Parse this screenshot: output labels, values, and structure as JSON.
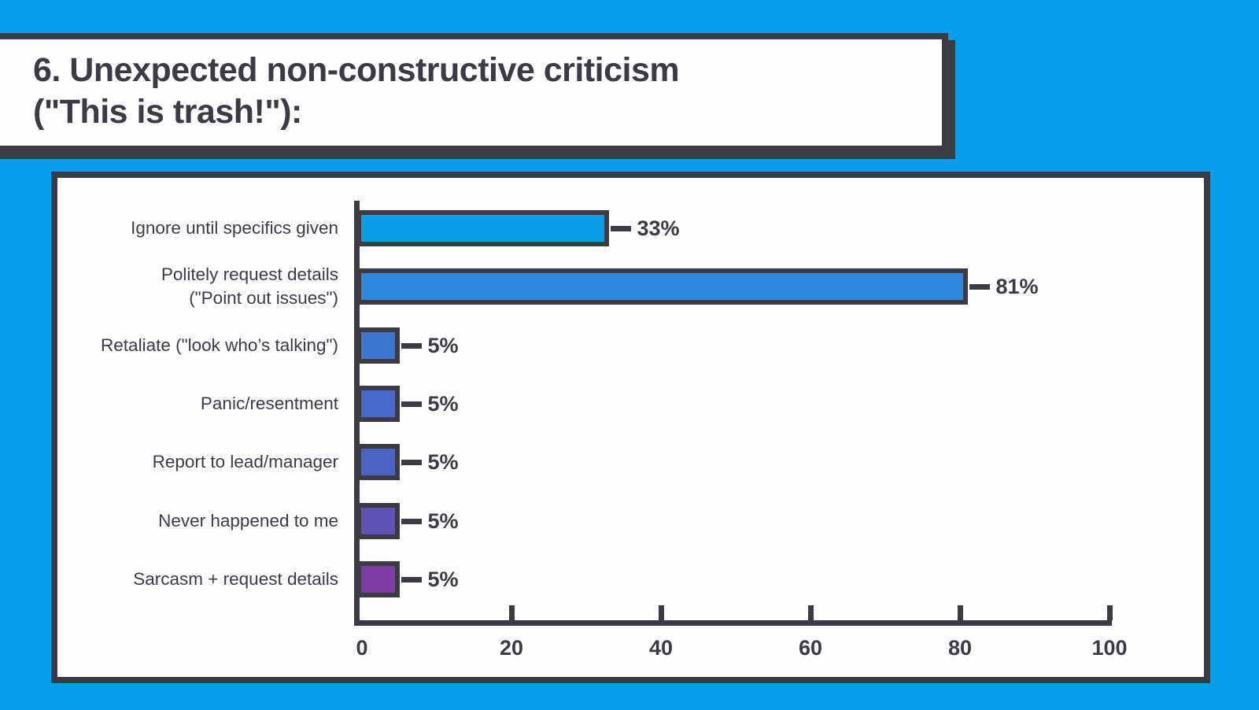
{
  "theme": {
    "background": "#059DEA",
    "ink": "#3B3B45",
    "card_background": "#FEFEFE"
  },
  "title": {
    "text": "6. Unexpected non-constructive criticism\n(\"This is trash!\"):"
  },
  "chart_data": {
    "type": "bar",
    "orientation": "horizontal",
    "title": "6. Unexpected non-constructive criticism (\"This is trash!\"):",
    "categories": [
      "Ignore until specifics given",
      "Politely request details\n(\"Point out issues\")",
      "Retaliate (\"look who’s talking\")",
      "Panic/resentment",
      "Report to lead/manager",
      "Never happened to me",
      "Sarcasm + request details"
    ],
    "values": [
      33,
      81,
      5,
      5,
      5,
      5,
      5
    ],
    "value_labels": [
      "33%",
      "81%",
      "5%",
      "5%",
      "5%",
      "5%",
      "5%"
    ],
    "bar_colors": [
      "#0C9FE9",
      "#2C87DD",
      "#3B76CF",
      "#4A68C8",
      "#4B64C4",
      "#6152B6",
      "#7D3FA4"
    ],
    "xlim": [
      0,
      100
    ],
    "x_ticks": [
      "0",
      "20",
      "40",
      "60",
      "80",
      "100"
    ],
    "x_tick_values": [
      0,
      20,
      40,
      60,
      80,
      100
    ],
    "grid": false,
    "legend": null,
    "xlabel": "",
    "ylabel": ""
  }
}
